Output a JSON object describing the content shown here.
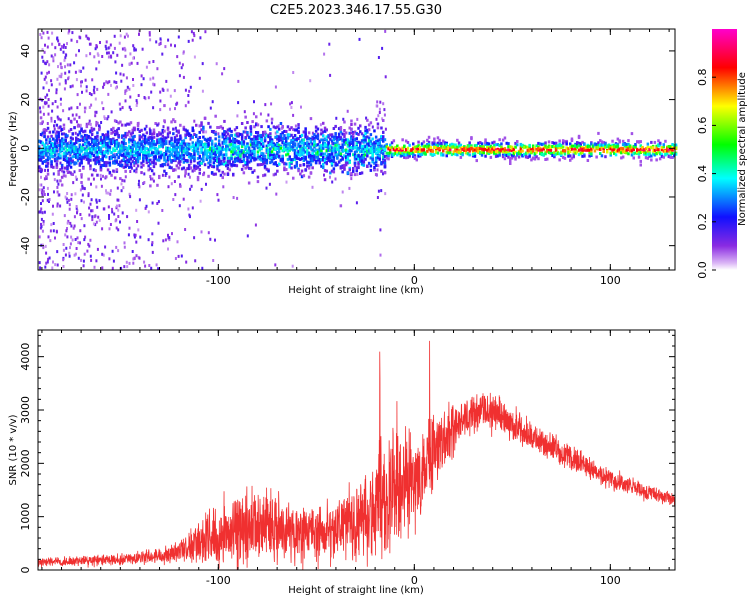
{
  "title": "C2E5.2023.346.17.55.G30",
  "chart_data": [
    {
      "type": "heatmap",
      "xlabel": "Height of straight line (km)",
      "ylabel": "Frequency (Hz)",
      "xlim": [
        -192,
        133
      ],
      "ylim": [
        -50,
        49
      ],
      "x_ticks": [
        -100,
        0,
        100
      ],
      "y_ticks": [
        40,
        20,
        0,
        -20,
        -40
      ],
      "colorbar": {
        "label": "Normalized spectral amplitude",
        "range": [
          0,
          1
        ],
        "ticks": [
          0.0,
          0.2,
          0.4,
          0.6,
          0.8
        ],
        "colormap": [
          "#ffffff",
          "#8a2be2",
          "#0000ff",
          "#00ffff",
          "#00ff00",
          "#ffff00",
          "#ff0000",
          "#ff00ff"
        ]
      },
      "band": {
        "center_freq_hz": 0,
        "noisy_region_x": [
          -192,
          -15
        ],
        "clean_region_x": [
          -15,
          133
        ],
        "noisy_halfwidth_hz": 8,
        "clean_halfwidth_hz": 3,
        "noisy_amplitude": 0.35,
        "clean_amplitude": 0.9
      }
    },
    {
      "type": "line",
      "xlabel": "Height of straight line (km)",
      "ylabel": "SNR (10 * v/v)",
      "xlim": [
        -192,
        133
      ],
      "ylim": [
        0,
        4500
      ],
      "x_ticks": [
        -100,
        0,
        100
      ],
      "y_ticks": [
        0,
        1000,
        2000,
        3000,
        4000
      ],
      "color": "#f03030",
      "series": [
        {
          "envelope_x": [
            -192,
            -160,
            -140,
            -120,
            -105,
            -90,
            -75,
            -60,
            -45,
            -30,
            -15,
            -5,
            10,
            25,
            40,
            60,
            80,
            100,
            120,
            133
          ],
          "envelope_mean": [
            150,
            180,
            220,
            350,
            650,
            750,
            850,
            650,
            700,
            900,
            1300,
            1600,
            2200,
            2900,
            3000,
            2500,
            2100,
            1700,
            1450,
            1300
          ],
          "envelope_amp": [
            120,
            130,
            150,
            250,
            700,
            800,
            900,
            600,
            650,
            900,
            1600,
            1400,
            900,
            500,
            450,
            350,
            300,
            250,
            200,
            180
          ]
        }
      ]
    }
  ]
}
